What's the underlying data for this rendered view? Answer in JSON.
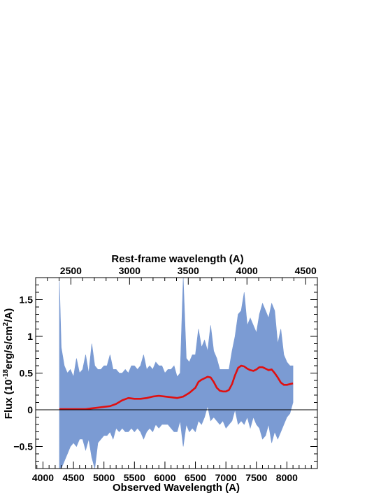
{
  "chart_data": {
    "type": "area",
    "xlabel": "Observed Wavelength (A)",
    "x2label": "Rest-frame wavelength (A)",
    "ylabel_main": "Flux (10",
    "ylabel_exp1": "-18",
    "ylabel_mid": "erg/s/cm",
    "ylabel_exp2": "2",
    "ylabel_end": "/A)",
    "xlim": [
      3880,
      8500
    ],
    "ylim": [
      -0.8,
      1.8
    ],
    "x2lim": [
      2200,
      4600
    ],
    "xticks": [
      4000,
      4500,
      5000,
      5500,
      6000,
      6500,
      7000,
      7500,
      8000
    ],
    "x2ticks": [
      2500,
      3000,
      3500,
      4000,
      4500
    ],
    "yticks": [
      -0.5,
      0,
      0.5,
      1,
      1.5
    ],
    "ytick_labels": [
      "−0.5",
      "0",
      "0.5",
      "1",
      "1.5"
    ],
    "zero_line": 0,
    "series": [
      {
        "kind": "band",
        "color": "#7b9bd3",
        "x": [
          4270,
          4300,
          4350,
          4400,
          4450,
          4500,
          4550,
          4600,
          4650,
          4700,
          4750,
          4800,
          4850,
          4900,
          4950,
          5000,
          5050,
          5100,
          5150,
          5200,
          5250,
          5300,
          5350,
          5400,
          5450,
          5500,
          5550,
          5600,
          5650,
          5700,
          5750,
          5800,
          5850,
          5900,
          5950,
          6000,
          6050,
          6100,
          6150,
          6200,
          6250,
          6300,
          6350,
          6400,
          6450,
          6500,
          6550,
          6600,
          6650,
          6700,
          6750,
          6800,
          6850,
          6900,
          6950,
          7000,
          7050,
          7100,
          7150,
          7200,
          7250,
          7300,
          7350,
          7400,
          7450,
          7500,
          7550,
          7600,
          7650,
          7700,
          7750,
          7800,
          7850,
          7900,
          7950,
          8000,
          8050,
          8100
        ],
        "upper": [
          1.75,
          0.85,
          0.6,
          0.5,
          0.55,
          0.45,
          0.7,
          0.5,
          0.55,
          0.75,
          0.5,
          0.9,
          0.6,
          0.55,
          0.55,
          0.6,
          0.6,
          0.75,
          0.55,
          0.55,
          0.5,
          0.5,
          0.55,
          0.5,
          0.6,
          0.6,
          0.55,
          0.6,
          0.75,
          0.55,
          0.6,
          0.55,
          0.65,
          0.6,
          0.6,
          0.5,
          0.55,
          0.55,
          0.6,
          0.45,
          0.5,
          1.8,
          0.7,
          0.65,
          0.75,
          0.75,
          1.1,
          0.85,
          0.95,
          0.8,
          1.15,
          0.8,
          0.7,
          0.55,
          0.55,
          0.55,
          0.55,
          0.8,
          1.0,
          1.3,
          1.35,
          1.6,
          1.15,
          1.25,
          1.15,
          1.05,
          1.3,
          1.45,
          1.35,
          1.25,
          1.45,
          1.35,
          0.9,
          1.1,
          0.75,
          0.65,
          0.6,
          0.6
        ],
        "lower": [
          -0.8,
          -0.8,
          -0.7,
          -0.6,
          -0.5,
          -0.45,
          -0.5,
          -0.4,
          -0.4,
          -0.55,
          -0.4,
          -0.65,
          -0.8,
          -0.45,
          -0.4,
          -0.35,
          -0.35,
          -0.3,
          -0.4,
          -0.25,
          -0.3,
          -0.25,
          -0.3,
          -0.3,
          -0.25,
          -0.3,
          -0.25,
          -0.3,
          -0.4,
          -0.3,
          -0.25,
          -0.3,
          -0.2,
          -0.25,
          -0.2,
          -0.2,
          -0.2,
          -0.25,
          -0.3,
          -0.3,
          -0.15,
          -0.5,
          -0.2,
          -0.3,
          -0.25,
          -0.3,
          -0.15,
          -0.2,
          -0.1,
          0.05,
          -0.15,
          -0.1,
          -0.15,
          -0.2,
          -0.15,
          -0.25,
          -0.2,
          -0.15,
          0.0,
          -0.2,
          -0.15,
          -0.2,
          -0.1,
          -0.25,
          -0.1,
          -0.2,
          -0.25,
          -0.4,
          -0.35,
          -0.2,
          -0.45,
          -0.3,
          -0.4,
          -0.3,
          -0.2,
          -0.1,
          -0.05,
          0.1
        ]
      },
      {
        "kind": "line",
        "color": "#e01010",
        "x": [
          4270,
          4400,
          4500,
          4600,
          4700,
          4800,
          4900,
          5000,
          5100,
          5200,
          5300,
          5400,
          5500,
          5600,
          5700,
          5800,
          5900,
          6000,
          6100,
          6200,
          6300,
          6400,
          6500,
          6550,
          6600,
          6650,
          6700,
          6750,
          6800,
          6850,
          6900,
          6950,
          7000,
          7050,
          7100,
          7150,
          7200,
          7250,
          7300,
          7350,
          7400,
          7450,
          7500,
          7550,
          7600,
          7650,
          7700,
          7750,
          7800,
          7850,
          7900,
          7950,
          8000,
          8050,
          8100
        ],
        "y": [
          0.01,
          0.01,
          0.01,
          0.01,
          0.01,
          0.02,
          0.03,
          0.04,
          0.05,
          0.08,
          0.13,
          0.16,
          0.15,
          0.15,
          0.16,
          0.18,
          0.19,
          0.18,
          0.17,
          0.16,
          0.18,
          0.23,
          0.3,
          0.38,
          0.41,
          0.43,
          0.45,
          0.44,
          0.38,
          0.3,
          0.26,
          0.25,
          0.25,
          0.27,
          0.35,
          0.47,
          0.57,
          0.6,
          0.59,
          0.56,
          0.54,
          0.53,
          0.55,
          0.58,
          0.58,
          0.56,
          0.54,
          0.55,
          0.5,
          0.44,
          0.37,
          0.34,
          0.34,
          0.35,
          0.36
        ]
      }
    ]
  }
}
